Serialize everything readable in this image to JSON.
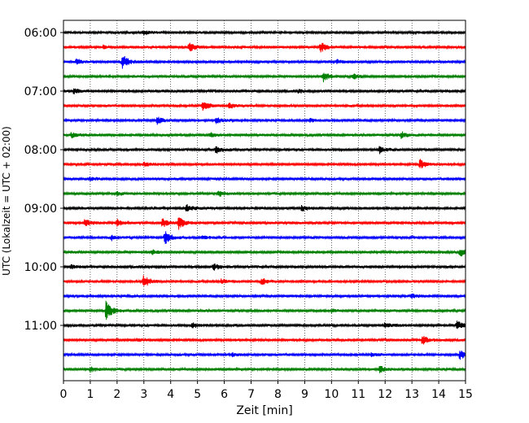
{
  "chart_data": {
    "type": "line",
    "title": "",
    "xlabel": "Zeit  [min]",
    "ylabel": "UTC (Lokalzeit = UTC + 02:00)",
    "xlim": [
      0,
      15
    ],
    "x_ticks": [
      0,
      1,
      2,
      3,
      4,
      5,
      6,
      7,
      8,
      9,
      10,
      11,
      12,
      13,
      14,
      15
    ],
    "y_tick_labels": [
      "06:00",
      "07:00",
      "08:00",
      "09:00",
      "10:00",
      "11:00"
    ],
    "grid": {
      "x": true,
      "y": false,
      "style": "dotted"
    },
    "trace_interval_min": 15,
    "trace_colors": [
      "#000000",
      "#ff0000",
      "#0000ff",
      "#008000"
    ],
    "series": [
      {
        "start": "06:00",
        "color": "#000000",
        "events": [
          {
            "t": 3.0,
            "a": 3
          }
        ]
      },
      {
        "start": "06:15",
        "color": "#ff0000",
        "events": [
          {
            "t": 4.7,
            "a": 5
          },
          {
            "t": 9.6,
            "a": 6
          },
          {
            "t": 1.5,
            "a": 2
          }
        ]
      },
      {
        "start": "06:30",
        "color": "#0000ff",
        "events": [
          {
            "t": 2.2,
            "a": 9
          },
          {
            "t": 0.5,
            "a": 3
          },
          {
            "t": 10.2,
            "a": 2
          }
        ]
      },
      {
        "start": "06:45",
        "color": "#008000",
        "events": [
          {
            "t": 9.7,
            "a": 6
          },
          {
            "t": 10.8,
            "a": 3
          }
        ]
      },
      {
        "start": "07:00",
        "color": "#000000",
        "events": [
          {
            "t": 0.4,
            "a": 3
          },
          {
            "t": 8.8,
            "a": 2
          }
        ]
      },
      {
        "start": "07:15",
        "color": "#ff0000",
        "events": [
          {
            "t": 5.2,
            "a": 6
          },
          {
            "t": 6.2,
            "a": 3
          }
        ]
      },
      {
        "start": "07:30",
        "color": "#0000ff",
        "events": [
          {
            "t": 3.5,
            "a": 4
          },
          {
            "t": 5.7,
            "a": 4
          },
          {
            "t": 9.2,
            "a": 2
          }
        ]
      },
      {
        "start": "07:45",
        "color": "#008000",
        "events": [
          {
            "t": 0.3,
            "a": 3
          },
          {
            "t": 12.6,
            "a": 4
          },
          {
            "t": 5.5,
            "a": 2
          }
        ]
      },
      {
        "start": "08:00",
        "color": "#000000",
        "events": [
          {
            "t": 5.7,
            "a": 5
          },
          {
            "t": 11.8,
            "a": 4
          }
        ]
      },
      {
        "start": "08:15",
        "color": "#ff0000",
        "events": [
          {
            "t": 13.3,
            "a": 6
          },
          {
            "t": 3.0,
            "a": 2
          }
        ]
      },
      {
        "start": "08:30",
        "color": "#0000ff",
        "events": [
          {
            "t": 1.0,
            "a": 2
          }
        ]
      },
      {
        "start": "08:45",
        "color": "#008000",
        "events": [
          {
            "t": 5.8,
            "a": 4
          },
          {
            "t": 2.0,
            "a": 2
          }
        ]
      },
      {
        "start": "09:00",
        "color": "#000000",
        "events": [
          {
            "t": 4.6,
            "a": 4
          },
          {
            "t": 8.9,
            "a": 3
          }
        ]
      },
      {
        "start": "09:15",
        "color": "#ff0000",
        "events": [
          {
            "t": 0.8,
            "a": 4
          },
          {
            "t": 2.0,
            "a": 4
          },
          {
            "t": 3.7,
            "a": 5
          },
          {
            "t": 4.3,
            "a": 7
          }
        ]
      },
      {
        "start": "09:30",
        "color": "#0000ff",
        "events": [
          {
            "t": 3.8,
            "a": 8
          },
          {
            "t": 1.8,
            "a": 3
          },
          {
            "t": 5.2,
            "a": 2
          }
        ]
      },
      {
        "start": "09:45",
        "color": "#008000",
        "events": [
          {
            "t": 14.8,
            "a": 5
          },
          {
            "t": 3.3,
            "a": 3
          }
        ]
      },
      {
        "start": "10:00",
        "color": "#000000",
        "events": [
          {
            "t": 5.6,
            "a": 4
          },
          {
            "t": 0.3,
            "a": 2
          }
        ]
      },
      {
        "start": "10:15",
        "color": "#ff0000",
        "events": [
          {
            "t": 3.0,
            "a": 8
          },
          {
            "t": 7.4,
            "a": 4
          },
          {
            "t": 5.9,
            "a": 3
          }
        ]
      },
      {
        "start": "10:30",
        "color": "#0000ff",
        "events": [
          {
            "t": 13.0,
            "a": 2
          }
        ]
      },
      {
        "start": "10:45",
        "color": "#008000",
        "events": [
          {
            "t": 1.6,
            "a": 12
          },
          {
            "t": 10.0,
            "a": 2
          }
        ]
      },
      {
        "start": "11:00",
        "color": "#000000",
        "events": [
          {
            "t": 14.7,
            "a": 5
          },
          {
            "t": 12.0,
            "a": 3
          },
          {
            "t": 4.8,
            "a": 3
          }
        ]
      },
      {
        "start": "11:15",
        "color": "#ff0000",
        "events": [
          {
            "t": 13.4,
            "a": 5
          },
          {
            "t": 2.8,
            "a": 2
          }
        ]
      },
      {
        "start": "11:30",
        "color": "#0000ff",
        "events": [
          {
            "t": 14.8,
            "a": 6
          },
          {
            "t": 11.5,
            "a": 2
          },
          {
            "t": 6.3,
            "a": 2
          }
        ]
      },
      {
        "start": "11:45",
        "color": "#008000",
        "events": [
          {
            "t": 11.8,
            "a": 4
          },
          {
            "t": 1.0,
            "a": 3
          }
        ]
      }
    ]
  }
}
